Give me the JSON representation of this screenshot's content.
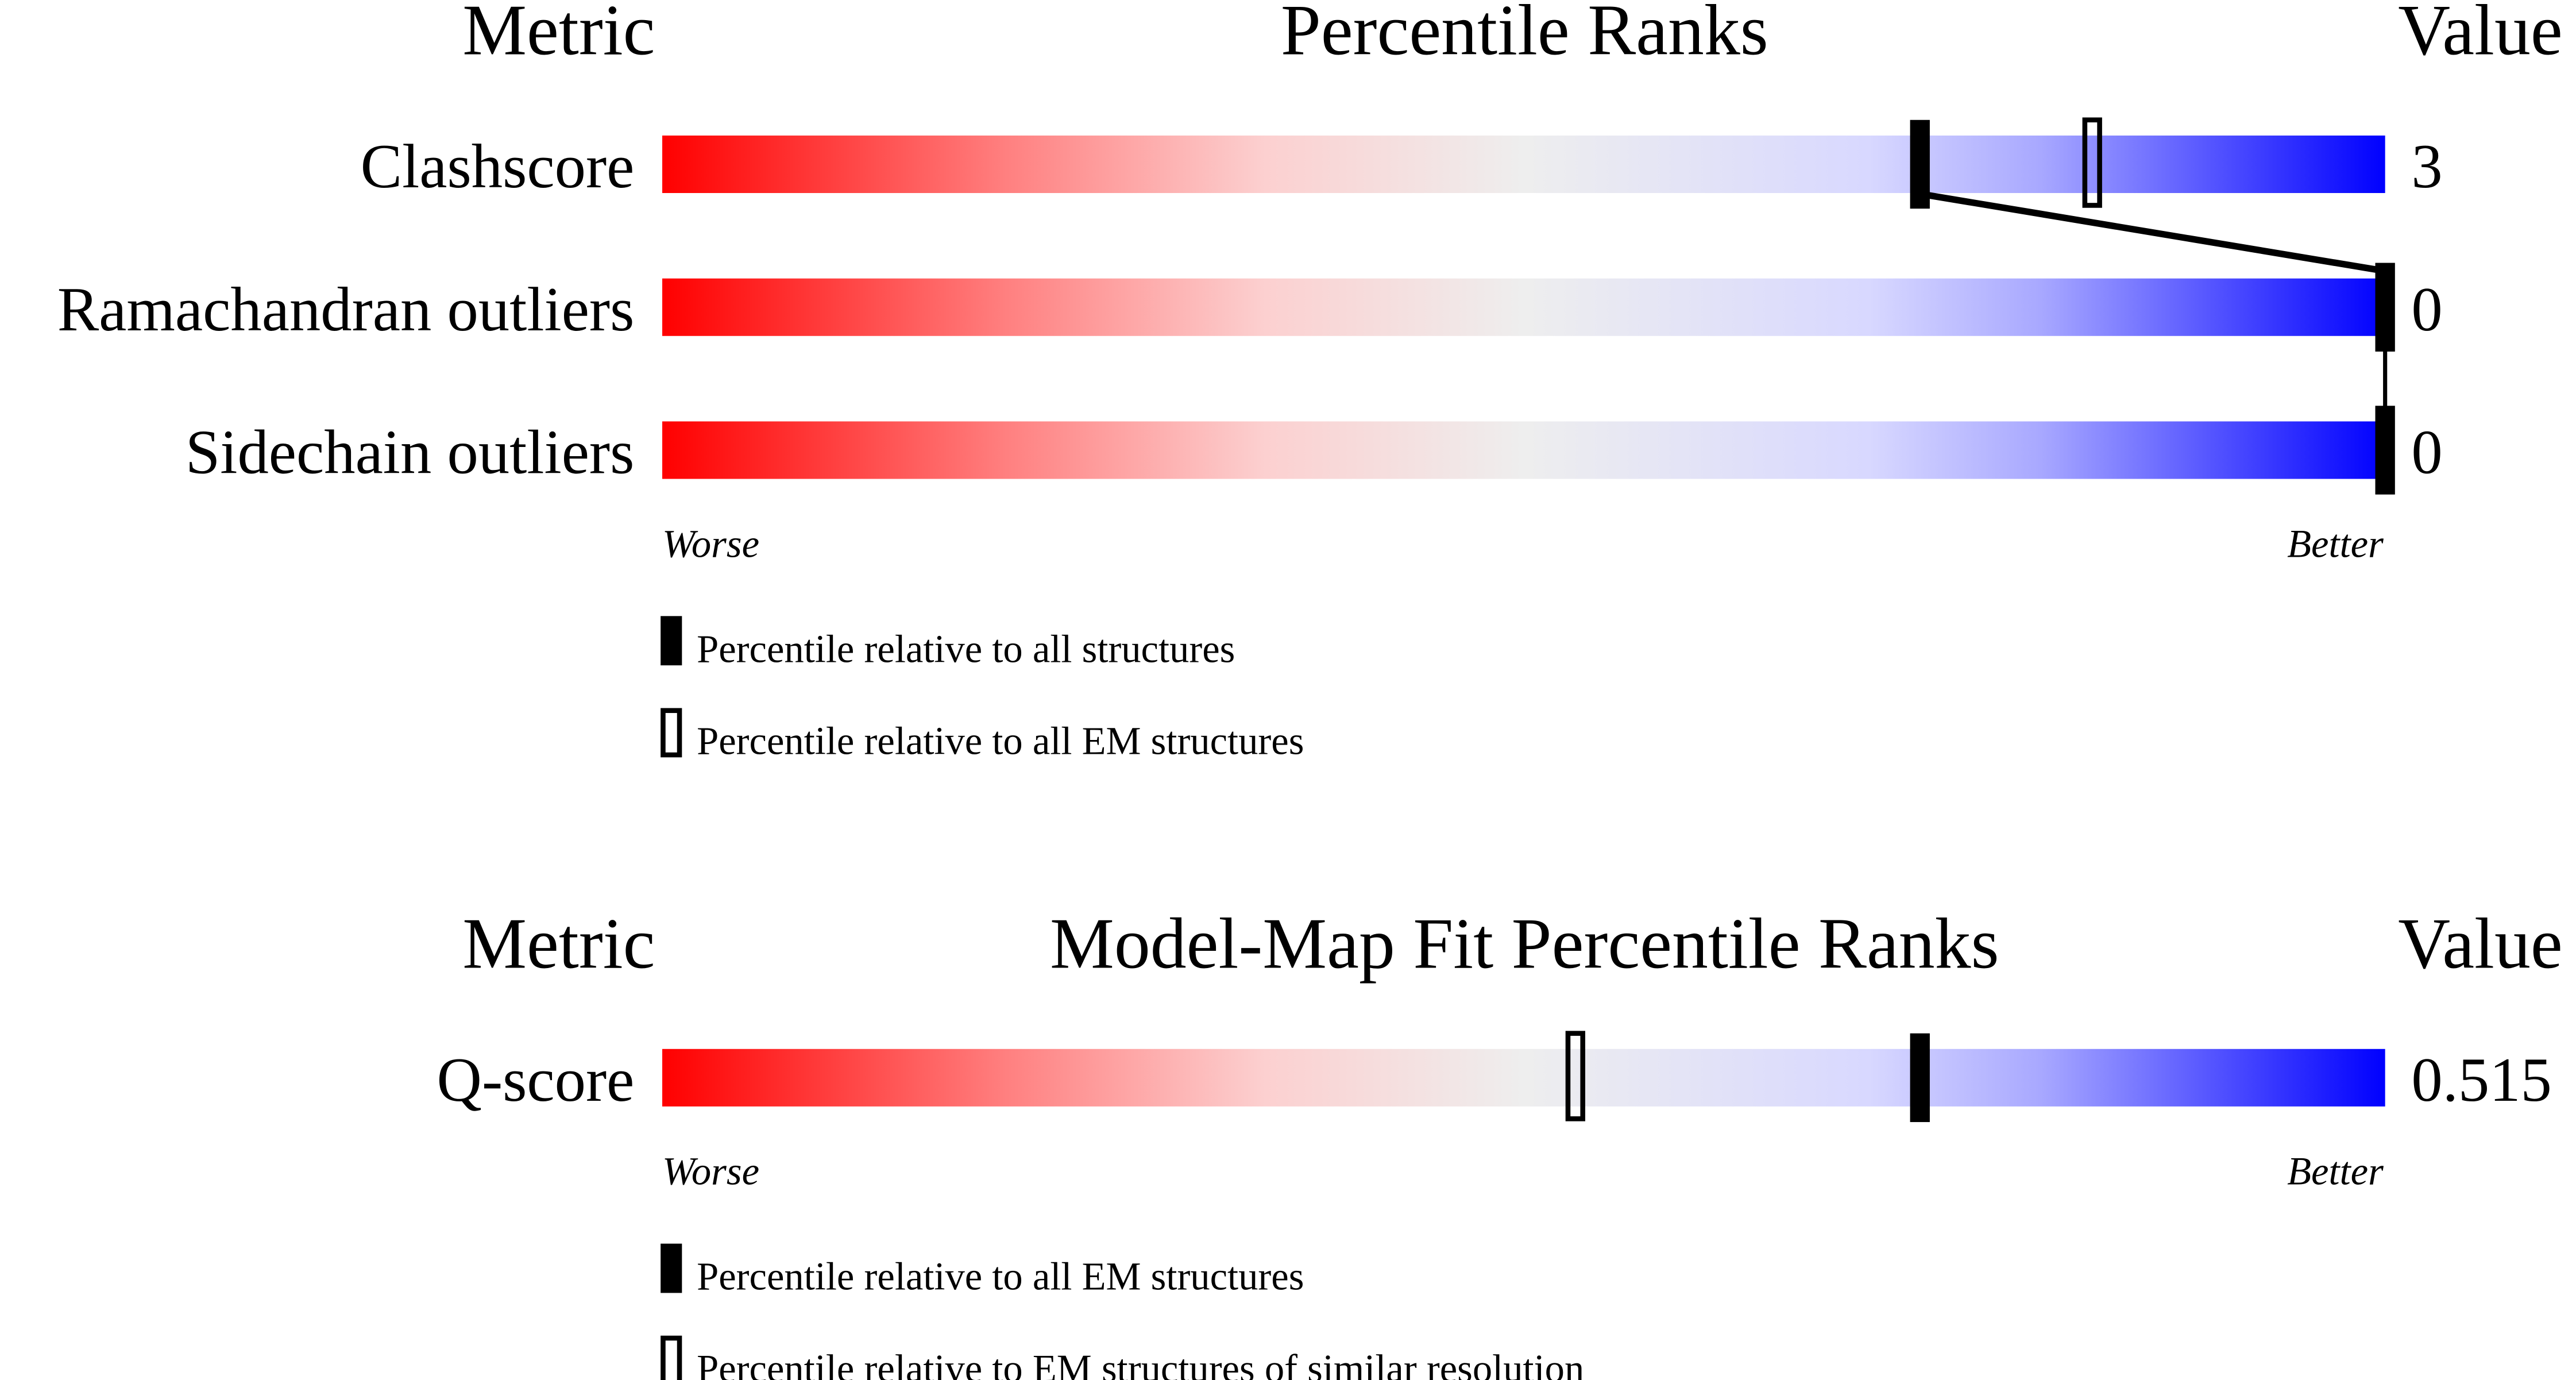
{
  "chart_data": [
    {
      "type": "bar",
      "subtype": "percentile-slider",
      "header": {
        "metric": "Metric",
        "title": "Percentile Ranks",
        "value": "Value"
      },
      "xlim": [
        0,
        100
      ],
      "axis_labels": {
        "low": "Worse",
        "high": "Better"
      },
      "rows": [
        {
          "metric": "Clashscore",
          "value": "3",
          "percentile_all": 73,
          "percentile_em": 83
        },
        {
          "metric": "Ramachandran outliers",
          "value": "0",
          "percentile_all": 100,
          "percentile_em": null
        },
        {
          "metric": "Sidechain outliers",
          "value": "0",
          "percentile_all": 100,
          "percentile_em": null
        }
      ],
      "connect_filled_markers": true,
      "legend": [
        {
          "marker": "filled",
          "label": "Percentile relative to all structures"
        },
        {
          "marker": "open",
          "label": "Percentile relative to all EM structures"
        }
      ]
    },
    {
      "type": "bar",
      "subtype": "percentile-slider",
      "header": {
        "metric": "Metric",
        "title": "Model-Map Fit Percentile Ranks",
        "value": "Value"
      },
      "xlim": [
        0,
        100
      ],
      "axis_labels": {
        "low": "Worse",
        "high": "Better"
      },
      "rows": [
        {
          "metric": "Q-score",
          "value": "0.515",
          "percentile_all": 73,
          "percentile_em": 53
        }
      ],
      "connect_filled_markers": false,
      "legend": [
        {
          "marker": "filled",
          "label": "Percentile relative to all EM structures"
        },
        {
          "marker": "open",
          "label": "Percentile relative to EM structures of similar resolution"
        }
      ]
    }
  ],
  "colors": {
    "worse": "#ff0000",
    "mid": "#eeeeee",
    "light_blue": "#d8d8ff",
    "better": "#0000ff",
    "marker": "#000000"
  }
}
